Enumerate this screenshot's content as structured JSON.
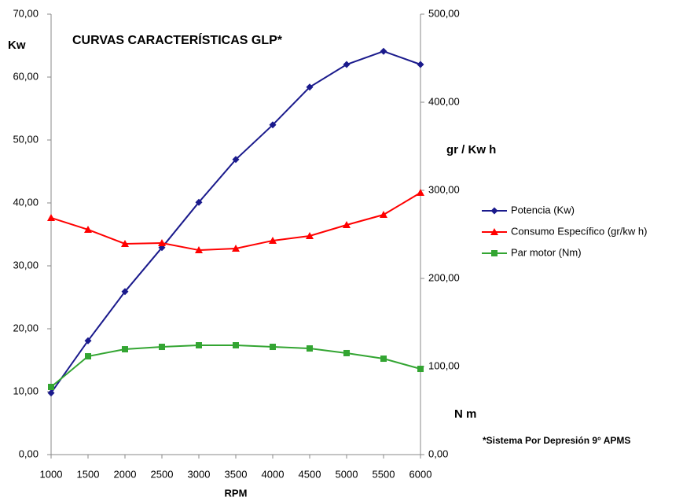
{
  "chart_data": {
    "type": "line",
    "title": "CURVAS CARACTERÍSTICAS   GLP*",
    "xlabel": "RPM",
    "ylabel": "Kw",
    "y2labels": [
      "gr / Kw h",
      "N m"
    ],
    "note": "*Sistema Por Depresión    9° APMS",
    "x": [
      1000,
      1500,
      2000,
      2500,
      3000,
      3500,
      4000,
      4500,
      5000,
      5500,
      6000
    ],
    "xlim": [
      1000,
      6000
    ],
    "xticks": [
      1000,
      1500,
      2000,
      2500,
      3000,
      3500,
      4000,
      4500,
      5000,
      5500,
      6000
    ],
    "ylim": [
      0,
      70
    ],
    "yticks": [
      {
        "value": 0,
        "label": "0,00"
      },
      {
        "value": 10,
        "label": "10,00"
      },
      {
        "value": 20,
        "label": "20,00"
      },
      {
        "value": 30,
        "label": "30,00"
      },
      {
        "value": 40,
        "label": "40,00"
      },
      {
        "value": 50,
        "label": "50,00"
      },
      {
        "value": 60,
        "label": "60,00"
      },
      {
        "value": 70,
        "label": "70,00"
      }
    ],
    "y2lim": [
      0,
      500
    ],
    "y2ticks": [
      {
        "value": 0,
        "label": "0,00"
      },
      {
        "value": 100,
        "label": "100,00"
      },
      {
        "value": 200,
        "label": "200,00"
      },
      {
        "value": 300,
        "label": "300,00"
      },
      {
        "value": 400,
        "label": "400,00"
      },
      {
        "value": 500,
        "label": "500,00"
      }
    ],
    "grid": false,
    "series": [
      {
        "name": "Potencia (Kw)",
        "color": "#1a1a8c",
        "marker": "diamond",
        "values": [
          9.8,
          18.1,
          25.9,
          32.9,
          40.1,
          46.9,
          52.4,
          58.4,
          62,
          64.1,
          62
        ]
      },
      {
        "name": "Consumo Específico (gr/kw h)",
        "color": "#ff0000",
        "marker": "triangle",
        "axis": "y2",
        "values": [
          268.8,
          255.4,
          239.3,
          240.2,
          232.1,
          233.9,
          242.9,
          248.2,
          260.7,
          272.3,
          297.3
        ]
      },
      {
        "name": "Par motor (Nm)",
        "color": "#33a532",
        "marker": "square",
        "axis": "y2",
        "values": [
          76.8,
          111.6,
          119.6,
          122.3,
          124.1,
          124.1,
          122.3,
          120.5,
          115.2,
          108.9,
          97.3
        ]
      }
    ]
  }
}
